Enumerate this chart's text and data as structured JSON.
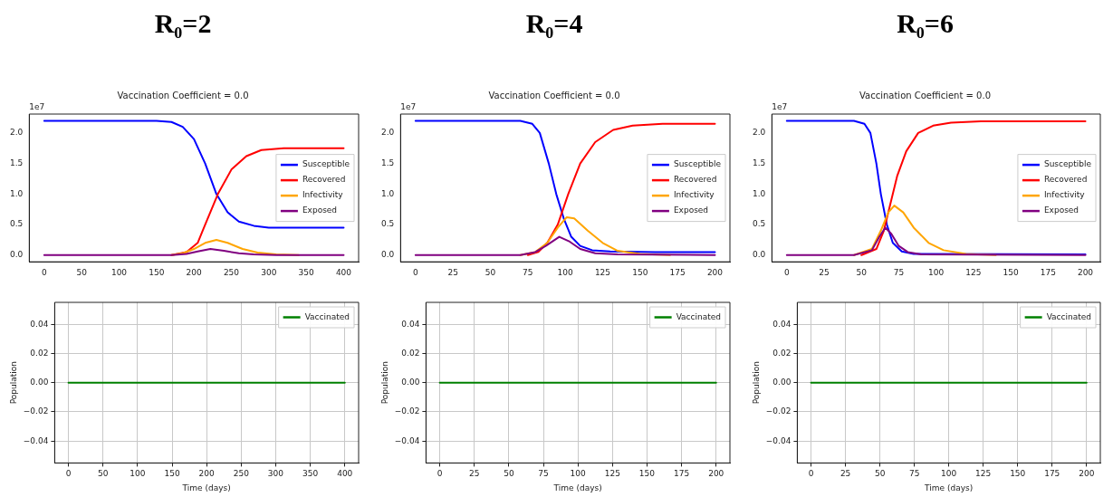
{
  "chart_data": [
    {
      "type": "line",
      "title": "R₀=2",
      "subtitle": "Vaccination Coefficient = 0.0",
      "annotations": [
        "1e7"
      ],
      "xlim": [
        -20,
        420
      ],
      "xticks": [
        0,
        50,
        100,
        150,
        200,
        250,
        300,
        350,
        400
      ],
      "ylim": [
        -0.11,
        2.31
      ],
      "yticks": [
        {
          "value": 0,
          "label": "0.0"
        },
        0.5,
        {
          "value": 1,
          "label": "1.0"
        },
        1.5,
        {
          "value": 2,
          "label": "2.0"
        }
      ],
      "grid": false,
      "legend": "right",
      "marker": "none",
      "series": [
        {
          "name": "Susceptible",
          "color": "#0000ff",
          "x": [
            0,
            100,
            150,
            170,
            185,
            200,
            215,
            230,
            245,
            260,
            280,
            300,
            350,
            400
          ],
          "values": [
            2.2,
            2.2,
            2.2,
            2.18,
            2.1,
            1.9,
            1.5,
            1.0,
            0.7,
            0.55,
            0.48,
            0.45,
            0.45,
            0.45
          ]
        },
        {
          "name": "Recovered",
          "color": "#ff0000",
          "x": [
            170,
            190,
            205,
            215,
            232,
            250,
            270,
            290,
            320,
            360,
            400
          ],
          "values": [
            0,
            0.05,
            0.2,
            0.5,
            1.0,
            1.4,
            1.62,
            1.72,
            1.75,
            1.75,
            1.75
          ]
        },
        {
          "name": "Infectivity",
          "color": "#ffa500",
          "x": [
            170,
            185,
            200,
            215,
            230,
            245,
            265,
            285,
            310,
            340
          ],
          "values": [
            0,
            0.03,
            0.1,
            0.2,
            0.25,
            0.2,
            0.1,
            0.04,
            0.01,
            0
          ]
        },
        {
          "name": "Exposed",
          "color": "#800080",
          "x": [
            0,
            100,
            170,
            190,
            205,
            222,
            240,
            260,
            280,
            310,
            400
          ],
          "values": [
            0,
            0,
            0,
            0.02,
            0.06,
            0.1,
            0.07,
            0.03,
            0.01,
            0,
            0
          ]
        }
      ]
    },
    {
      "type": "line",
      "title": "R₀=4",
      "subtitle": "Vaccination Coefficient = 0.0",
      "annotations": [
        "1e7"
      ],
      "xlim": [
        -10,
        210
      ],
      "xticks": [
        0,
        25,
        50,
        75,
        100,
        125,
        150,
        175,
        200
      ],
      "ylim": [
        -0.11,
        2.31
      ],
      "yticks": [
        {
          "value": 0,
          "label": "0.0"
        },
        0.5,
        {
          "value": 1,
          "label": "1.0"
        },
        1.5,
        {
          "value": 2,
          "label": "2.0"
        }
      ],
      "grid": false,
      "legend": "right",
      "marker": "none",
      "series": [
        {
          "name": "Susceptible",
          "color": "#0000ff",
          "x": [
            0,
            50,
            70,
            78,
            83,
            89,
            94,
            99,
            104,
            110,
            118,
            130,
            160,
            200
          ],
          "values": [
            2.2,
            2.2,
            2.2,
            2.15,
            2.0,
            1.5,
            1.0,
            0.6,
            0.3,
            0.15,
            0.08,
            0.06,
            0.05,
            0.05
          ]
        },
        {
          "name": "Recovered",
          "color": "#ff0000",
          "x": [
            75,
            82,
            88,
            95,
            102,
            110,
            120,
            132,
            145,
            165,
            200
          ],
          "values": [
            0,
            0.05,
            0.2,
            0.5,
            1.0,
            1.5,
            1.85,
            2.05,
            2.12,
            2.15,
            2.15
          ]
        },
        {
          "name": "Infectivity",
          "color": "#ffa500",
          "x": [
            70,
            80,
            88,
            95,
            101,
            106,
            115,
            125,
            135,
            150,
            170
          ],
          "values": [
            0,
            0.05,
            0.2,
            0.45,
            0.62,
            0.6,
            0.4,
            0.2,
            0.07,
            0.02,
            0
          ]
        },
        {
          "name": "Exposed",
          "color": "#800080",
          "x": [
            0,
            50,
            70,
            80,
            87,
            96,
            103,
            110,
            120,
            135,
            200
          ],
          "values": [
            0,
            0,
            0,
            0.05,
            0.15,
            0.3,
            0.22,
            0.1,
            0.03,
            0.01,
            0
          ]
        }
      ]
    },
    {
      "type": "line",
      "title": "R₀=6",
      "subtitle": "Vaccination Coefficient = 0.0",
      "annotations": [
        "1e7"
      ],
      "xlim": [
        -10,
        210
      ],
      "xticks": [
        0,
        25,
        50,
        75,
        100,
        125,
        150,
        175,
        200
      ],
      "ylim": [
        -0.11,
        2.31
      ],
      "yticks": [
        {
          "value": 0,
          "label": "0.0"
        },
        0.5,
        {
          "value": 1,
          "label": "1.0"
        },
        1.5,
        {
          "value": 2,
          "label": "2.0"
        }
      ],
      "grid": false,
      "legend": "right",
      "marker": "none",
      "series": [
        {
          "name": "Susceptible",
          "color": "#0000ff",
          "x": [
            0,
            30,
            45,
            52,
            56,
            60,
            63,
            67,
            71,
            77,
            85,
            200
          ],
          "values": [
            2.2,
            2.2,
            2.2,
            2.15,
            2.0,
            1.5,
            1.0,
            0.5,
            0.2,
            0.06,
            0.02,
            0.01
          ]
        },
        {
          "name": "Recovered",
          "color": "#ff0000",
          "x": [
            50,
            60,
            65,
            69,
            74,
            80,
            88,
            98,
            110,
            130,
            200
          ],
          "values": [
            0,
            0.1,
            0.4,
            0.8,
            1.3,
            1.7,
            2.0,
            2.12,
            2.17,
            2.19,
            2.19
          ]
        },
        {
          "name": "Infectivity",
          "color": "#ffa500",
          "x": [
            45,
            57,
            63,
            68,
            72,
            78,
            85,
            95,
            105,
            120,
            140
          ],
          "values": [
            0,
            0.1,
            0.4,
            0.7,
            0.81,
            0.7,
            0.45,
            0.2,
            0.08,
            0.02,
            0
          ]
        },
        {
          "name": "Exposed",
          "color": "#800080",
          "x": [
            0,
            30,
            45,
            57,
            62,
            66,
            70,
            75,
            81,
            90,
            200
          ],
          "values": [
            0,
            0,
            0,
            0.08,
            0.3,
            0.45,
            0.35,
            0.15,
            0.05,
            0.01,
            0
          ]
        }
      ]
    },
    {
      "type": "line",
      "xlabel": "Time (days)",
      "ylabel": "Population",
      "xlim": [
        -20,
        420
      ],
      "xticks": [
        0,
        50,
        100,
        150,
        200,
        250,
        300,
        350,
        400
      ],
      "ylim": [
        -0.055,
        0.055
      ],
      "yticks": [
        {
          "value": -0.04,
          "label": "−0.04"
        },
        {
          "value": -0.02,
          "label": "−0.02"
        },
        {
          "value": 0,
          "label": "0.00"
        },
        0.02,
        0.04
      ],
      "grid": true,
      "legend": "top right",
      "marker": "none",
      "series": [
        {
          "name": "Vaccinated",
          "color": "#008000",
          "x": [
            0,
            400
          ],
          "values": [
            0,
            0
          ]
        }
      ]
    },
    {
      "type": "line",
      "xlabel": "Time (days)",
      "ylabel": "Population",
      "xlim": [
        -10,
        210
      ],
      "xticks": [
        0,
        25,
        50,
        75,
        100,
        125,
        150,
        175,
        200
      ],
      "ylim": [
        -0.055,
        0.055
      ],
      "yticks": [
        {
          "value": -0.04,
          "label": "−0.04"
        },
        {
          "value": -0.02,
          "label": "−0.02"
        },
        {
          "value": 0,
          "label": "0.00"
        },
        0.02,
        0.04
      ],
      "grid": true,
      "legend": "top right",
      "marker": "none",
      "series": [
        {
          "name": "Vaccinated",
          "color": "#008000",
          "x": [
            0,
            200
          ],
          "values": [
            0,
            0
          ]
        }
      ]
    },
    {
      "type": "line",
      "xlabel": "Time (days)",
      "ylabel": "Population",
      "xlim": [
        -10,
        210
      ],
      "xticks": [
        0,
        25,
        50,
        75,
        100,
        125,
        150,
        175,
        200
      ],
      "ylim": [
        -0.055,
        0.055
      ],
      "yticks": [
        {
          "value": -0.04,
          "label": "−0.04"
        },
        {
          "value": -0.02,
          "label": "−0.02"
        },
        {
          "value": 0,
          "label": "0.00"
        },
        0.02,
        0.04
      ],
      "grid": true,
      "legend": "top right",
      "marker": "none",
      "series": [
        {
          "name": "Vaccinated",
          "color": "#008000",
          "x": [
            0,
            200
          ],
          "values": [
            0,
            0
          ]
        }
      ]
    }
  ]
}
